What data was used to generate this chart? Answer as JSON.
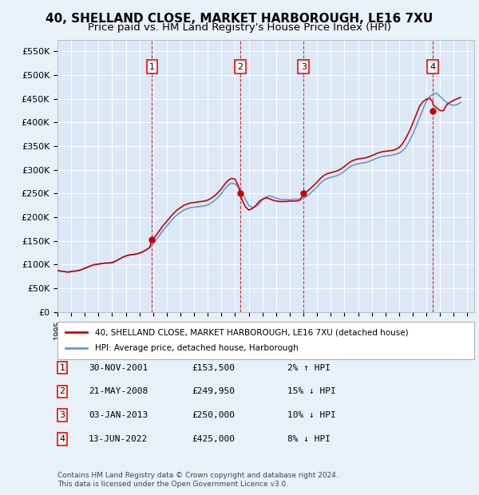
{
  "title": "40, SHELLAND CLOSE, MARKET HARBOROUGH, LE16 7XU",
  "subtitle": "Price paid vs. HM Land Registry's House Price Index (HPI)",
  "title_fontsize": 11,
  "subtitle_fontsize": 9.5,
  "background_color": "#e8f0f8",
  "plot_bg_color": "#dce8f5",
  "ylim": [
    0,
    575000
  ],
  "yticks": [
    0,
    50000,
    100000,
    150000,
    200000,
    250000,
    300000,
    350000,
    400000,
    450000,
    500000,
    550000
  ],
  "ytick_labels": [
    "£0",
    "£50K",
    "£100K",
    "£150K",
    "£200K",
    "£250K",
    "£300K",
    "£350K",
    "£400K",
    "£450K",
    "£500K",
    "£550K"
  ],
  "xlim_start": 1995.0,
  "xlim_end": 2025.5,
  "sale_dates": [
    2001.92,
    2008.38,
    2013.01,
    2022.45
  ],
  "sale_prices": [
    153500,
    249950,
    250000,
    425000
  ],
  "sale_labels": [
    "1",
    "2",
    "3",
    "4"
  ],
  "red_line_color": "#cc0000",
  "blue_line_color": "#6699cc",
  "vline_color": "#cc0000",
  "marker_color": "#cc0000",
  "legend_label_red": "40, SHELLAND CLOSE, MARKET HARBOROUGH, LE16 7XU (detached house)",
  "legend_label_blue": "HPI: Average price, detached house, Harborough",
  "table_rows": [
    {
      "num": "1",
      "date": "30-NOV-2001",
      "price": "£153,500",
      "hpi": "2% ↑ HPI"
    },
    {
      "num": "2",
      "date": "21-MAY-2008",
      "price": "£249,950",
      "hpi": "15% ↓ HPI"
    },
    {
      "num": "3",
      "date": "03-JAN-2013",
      "price": "£250,000",
      "hpi": "10% ↓ HPI"
    },
    {
      "num": "4",
      "date": "13-JUN-2022",
      "price": "£425,000",
      "hpi": "8% ↓ HPI"
    }
  ],
  "footer": "Contains HM Land Registry data © Crown copyright and database right 2024.\nThis data is licensed under the Open Government Licence v3.0.",
  "hpi_data": {
    "years": [
      1995.0,
      1995.25,
      1995.5,
      1995.75,
      1996.0,
      1996.25,
      1996.5,
      1996.75,
      1997.0,
      1997.25,
      1997.5,
      1997.75,
      1998.0,
      1998.25,
      1998.5,
      1998.75,
      1999.0,
      1999.25,
      1999.5,
      1999.75,
      2000.0,
      2000.25,
      2000.5,
      2000.75,
      2001.0,
      2001.25,
      2001.5,
      2001.75,
      2002.0,
      2002.25,
      2002.5,
      2002.75,
      2003.0,
      2003.25,
      2003.5,
      2003.75,
      2004.0,
      2004.25,
      2004.5,
      2004.75,
      2005.0,
      2005.25,
      2005.5,
      2005.75,
      2006.0,
      2006.25,
      2006.5,
      2006.75,
      2007.0,
      2007.25,
      2007.5,
      2007.75,
      2008.0,
      2008.25,
      2008.5,
      2008.75,
      2009.0,
      2009.25,
      2009.5,
      2009.75,
      2010.0,
      2010.25,
      2010.5,
      2010.75,
      2011.0,
      2011.25,
      2011.5,
      2011.75,
      2012.0,
      2012.25,
      2012.5,
      2012.75,
      2013.0,
      2013.25,
      2013.5,
      2013.75,
      2014.0,
      2014.25,
      2014.5,
      2014.75,
      2015.0,
      2015.25,
      2015.5,
      2015.75,
      2016.0,
      2016.25,
      2016.5,
      2016.75,
      2017.0,
      2017.25,
      2017.5,
      2017.75,
      2018.0,
      2018.25,
      2018.5,
      2018.75,
      2019.0,
      2019.25,
      2019.5,
      2019.75,
      2020.0,
      2020.25,
      2020.5,
      2020.75,
      2021.0,
      2021.25,
      2021.5,
      2021.75,
      2022.0,
      2022.25,
      2022.5,
      2022.75,
      2023.0,
      2023.25,
      2023.5,
      2023.75,
      2024.0,
      2024.25,
      2024.5
    ],
    "values": [
      87000,
      86000,
      85000,
      84000,
      85000,
      86000,
      87000,
      89000,
      92000,
      95000,
      98000,
      100000,
      101000,
      102000,
      103000,
      103000,
      104000,
      107000,
      111000,
      115000,
      118000,
      120000,
      121000,
      122000,
      124000,
      127000,
      131000,
      136000,
      143000,
      153000,
      163000,
      173000,
      181000,
      190000,
      198000,
      205000,
      210000,
      215000,
      218000,
      220000,
      221000,
      222000,
      223000,
      224000,
      226000,
      230000,
      235000,
      242000,
      250000,
      260000,
      268000,
      272000,
      270000,
      263000,
      252000,
      238000,
      225000,
      220000,
      222000,
      228000,
      237000,
      242000,
      245000,
      243000,
      240000,
      238000,
      237000,
      237000,
      237000,
      238000,
      238000,
      238000,
      240000,
      244000,
      250000,
      257000,
      264000,
      272000,
      278000,
      282000,
      284000,
      286000,
      288000,
      292000,
      297000,
      303000,
      308000,
      311000,
      313000,
      314000,
      315000,
      317000,
      320000,
      323000,
      326000,
      328000,
      329000,
      330000,
      331000,
      333000,
      335000,
      340000,
      348000,
      360000,
      375000,
      392000,
      410000,
      428000,
      445000,
      455000,
      460000,
      462000,
      455000,
      448000,
      442000,
      438000,
      436000,
      438000,
      442000
    ]
  },
  "price_paid_data": {
    "years": [
      1995.0,
      1995.25,
      1995.5,
      1995.75,
      1996.0,
      1996.25,
      1996.5,
      1996.75,
      1997.0,
      1997.25,
      1997.5,
      1997.75,
      1998.0,
      1998.25,
      1998.5,
      1998.75,
      1999.0,
      1999.25,
      1999.5,
      1999.75,
      2000.0,
      2000.25,
      2000.5,
      2000.75,
      2001.0,
      2001.25,
      2001.5,
      2001.75,
      2001.92,
      2002.0,
      2002.25,
      2002.5,
      2002.75,
      2003.0,
      2003.25,
      2003.5,
      2003.75,
      2004.0,
      2004.25,
      2004.5,
      2004.75,
      2005.0,
      2005.25,
      2005.5,
      2005.75,
      2006.0,
      2006.25,
      2006.5,
      2006.75,
      2007.0,
      2007.25,
      2007.5,
      2007.75,
      2008.0,
      2008.25,
      2008.38,
      2008.5,
      2008.75,
      2009.0,
      2009.25,
      2009.5,
      2009.75,
      2010.0,
      2010.25,
      2010.5,
      2010.75,
      2011.0,
      2011.25,
      2011.5,
      2011.75,
      2012.0,
      2012.25,
      2012.5,
      2012.75,
      2013.0,
      2013.01,
      2013.25,
      2013.5,
      2013.75,
      2014.0,
      2014.25,
      2014.5,
      2014.75,
      2015.0,
      2015.25,
      2015.5,
      2015.75,
      2016.0,
      2016.25,
      2016.5,
      2016.75,
      2017.0,
      2017.25,
      2017.5,
      2017.75,
      2018.0,
      2018.25,
      2018.5,
      2018.75,
      2019.0,
      2019.25,
      2019.5,
      2019.75,
      2020.0,
      2020.25,
      2020.5,
      2020.75,
      2021.0,
      2021.25,
      2021.5,
      2021.75,
      2022.0,
      2022.25,
      2022.45,
      2022.5,
      2022.75,
      2023.0,
      2023.25,
      2023.5,
      2023.75,
      2024.0,
      2024.25,
      2024.5
    ],
    "values": [
      87000,
      86000,
      85000,
      84000,
      85000,
      86000,
      87000,
      89000,
      92000,
      95000,
      98000,
      100000,
      101000,
      102000,
      103000,
      103000,
      104000,
      107000,
      111000,
      115000,
      118000,
      120000,
      121000,
      122000,
      124000,
      127000,
      131000,
      136000,
      153500,
      153500,
      163000,
      173000,
      183000,
      191000,
      200000,
      208000,
      215000,
      220000,
      225000,
      228000,
      230000,
      231000,
      232000,
      233000,
      234000,
      236000,
      240000,
      245000,
      252000,
      260000,
      270000,
      278000,
      282000,
      280000,
      265000,
      249950,
      237000,
      222000,
      215000,
      218000,
      224000,
      233000,
      238000,
      241000,
      239000,
      236000,
      234000,
      233000,
      233000,
      233000,
      234000,
      234000,
      234000,
      236000,
      250000,
      250000,
      254000,
      260000,
      267000,
      274000,
      282000,
      288000,
      292000,
      294000,
      296000,
      298000,
      302000,
      307000,
      313000,
      318000,
      321000,
      323000,
      324000,
      325000,
      327000,
      330000,
      333000,
      336000,
      338000,
      339000,
      340000,
      341000,
      343000,
      347000,
      355000,
      367000,
      381000,
      398000,
      416000,
      434000,
      444000,
      449000,
      451000,
      444000,
      437000,
      431000,
      425000,
      425000,
      438000,
      443000,
      447000,
      450000,
      453000
    ]
  }
}
